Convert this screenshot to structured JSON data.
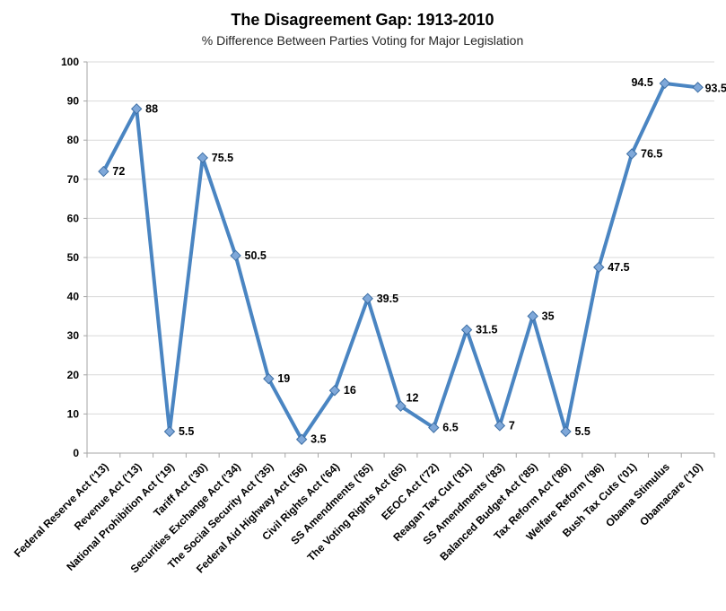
{
  "chart_data": {
    "type": "line",
    "title": "The Disagreement Gap: 1913-2010",
    "subtitle": "% Difference Between Parties Voting for Major Legislation",
    "categories": [
      "Federal Reserve Act ('13)",
      "Revenue Act ('13)",
      "National Prohibition Act ('19)",
      "Tariff Act ('30)",
      "Securities Exchange Act ('34)",
      "The Social Security Act ('35)",
      "Federal Aid Highway Act ('56)",
      "Civil Rights Act ('64)",
      "SS Amendments ('65)",
      "The Voting Rights Act (65)",
      "EEOC Act ('72)",
      "Reagan Tax Cut ('81)",
      "SS Amendments ('83)",
      "Balanced Budget Act ('85)",
      "Tax Reform Act ('86)",
      "Welfare Reform ('96)",
      "Bush Tax Cuts ('01)",
      "Obama Stimulus",
      "Obamacare ('10)"
    ],
    "values": [
      72,
      88,
      5.5,
      75.5,
      50.5,
      19,
      3.5,
      16,
      39.5,
      12,
      6.5,
      31.5,
      7,
      35,
      5.5,
      47.5,
      76.5,
      94.5,
      93.5
    ],
    "data_labels": [
      "72",
      "88",
      "5.5",
      "75.5",
      "50.5",
      "19",
      "3.5",
      "16",
      "39.5",
      "12",
      "6.5",
      "31.5",
      "7",
      "35",
      "5.5",
      "47.5",
      "76.5",
      "94.5",
      "93.5"
    ],
    "xlabel": "",
    "ylabel": "",
    "ylim": [
      0,
      100
    ],
    "ytick_interval": 10,
    "ytick_labels": [
      "0",
      "10",
      "20",
      "30",
      "40",
      "50",
      "60",
      "70",
      "80",
      "90",
      "100"
    ],
    "grid": "horizontal",
    "legend": "none",
    "marker": "diamond",
    "label_placements": {
      "9": "above",
      "17": "left",
      "18": "right-close"
    },
    "colors": {
      "line": "#4A85C2",
      "marker_fill": "#7FA8D9",
      "marker_stroke": "#3D6FA5",
      "gridline": "#D9D9D9",
      "axis": "#A6A6A6",
      "text": "#000000"
    }
  }
}
